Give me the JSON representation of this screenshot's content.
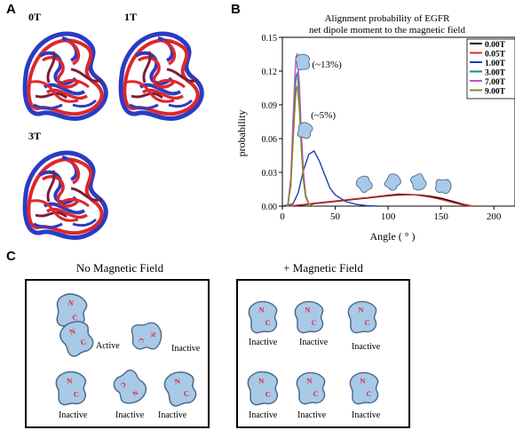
{
  "panels": {
    "a": "A",
    "b": "B",
    "c": "C"
  },
  "structures": [
    {
      "label": "0T"
    },
    {
      "label": "1T"
    },
    {
      "label": "3T"
    }
  ],
  "colors": {
    "structure_red": "#e0262b",
    "structure_blue": "#2a3cc4",
    "blob": "#a9c9e8",
    "blob_edge": "#4a6a8a",
    "terminal": "#e0262b"
  },
  "chart_data": {
    "type": "line",
    "title": "Alignment probability of EGFR\nnet dipole moment to the magnetic field",
    "title_lines": [
      "Alignment probability of EGFR",
      "net dipole moment to the magnetic field"
    ],
    "xlabel": "Angle ( ° )",
    "ylabel": "probability",
    "xlim": [
      0,
      220
    ],
    "ylim": [
      0,
      0.15
    ],
    "xticks": [
      0,
      50,
      100,
      150,
      200
    ],
    "yticks": [
      0.0,
      0.03,
      0.06,
      0.09,
      0.12,
      0.15
    ],
    "xtick_labels": [
      "0",
      "50",
      "100",
      "150",
      "200"
    ],
    "ytick_labels": [
      "0.00",
      "0.03",
      "0.06",
      "0.09",
      "0.12",
      "0.15"
    ],
    "legend_position": "top-right",
    "annotations": [
      "(~13%)",
      "(~5%)"
    ],
    "series": [
      {
        "name": "0.00T",
        "color": "#000000",
        "x": [
          0,
          10,
          20,
          30,
          40,
          50,
          60,
          70,
          80,
          90,
          100,
          110,
          120,
          130,
          140,
          150,
          160,
          170,
          180
        ],
        "y": [
          0,
          0.0003,
          0.0012,
          0.0022,
          0.0032,
          0.0042,
          0.0052,
          0.0062,
          0.0072,
          0.0082,
          0.0092,
          0.01,
          0.0103,
          0.0098,
          0.0088,
          0.007,
          0.0045,
          0.0018,
          0
        ]
      },
      {
        "name": "0.05T",
        "color": "#e0262b",
        "x": [
          0,
          10,
          20,
          30,
          40,
          50,
          60,
          70,
          80,
          90,
          100,
          110,
          120,
          130,
          140,
          150,
          160,
          170,
          180
        ],
        "y": [
          0,
          0.0004,
          0.0014,
          0.0026,
          0.0036,
          0.0046,
          0.0056,
          0.0066,
          0.0076,
          0.0086,
          0.0098,
          0.0108,
          0.0104,
          0.0094,
          0.008,
          0.006,
          0.0035,
          0.0012,
          0
        ]
      },
      {
        "name": "1.00T",
        "color": "#1f3ea8",
        "x": [
          0,
          10,
          15,
          20,
          25,
          30,
          35,
          40,
          45,
          50,
          60,
          70,
          80,
          90
        ],
        "y": [
          0,
          0.002,
          0.012,
          0.032,
          0.046,
          0.049,
          0.04,
          0.028,
          0.016,
          0.01,
          0.004,
          0.0015,
          0.0005,
          0
        ]
      },
      {
        "name": "3.00T",
        "color": "#1a8a8a",
        "x": [
          5,
          8,
          10,
          12,
          13,
          14,
          16,
          18,
          20,
          22,
          25,
          30
        ],
        "y": [
          0,
          0.02,
          0.06,
          0.1,
          0.116,
          0.118,
          0.1,
          0.06,
          0.028,
          0.01,
          0.002,
          0
        ]
      },
      {
        "name": "7.00T",
        "color": "#c252c2",
        "x": [
          5,
          8,
          10,
          12,
          13,
          14,
          16,
          18,
          20,
          22,
          25,
          30
        ],
        "y": [
          0,
          0.025,
          0.075,
          0.12,
          0.133,
          0.135,
          0.11,
          0.065,
          0.03,
          0.01,
          0.002,
          0
        ]
      },
      {
        "name": "9.00T",
        "color": "#7a8a1a",
        "x": [
          5,
          8,
          10,
          12,
          13,
          14,
          16,
          18,
          20,
          22,
          25,
          30
        ],
        "y": [
          0,
          0.018,
          0.055,
          0.09,
          0.104,
          0.106,
          0.088,
          0.05,
          0.022,
          0.008,
          0.002,
          0
        ]
      }
    ]
  },
  "panel_c": {
    "left_title": "No Magnetic Field",
    "right_title": "+ Magnetic Field",
    "left_labels": [
      "Active",
      "Inactive",
      "Inactive",
      "Inactive",
      "Inactive"
    ],
    "right_labels": [
      "Inactive",
      "Inactive",
      "Inactive",
      "Inactive",
      "Inactive",
      "Inactive"
    ],
    "terminals": {
      "n": "N",
      "c": "C"
    }
  }
}
